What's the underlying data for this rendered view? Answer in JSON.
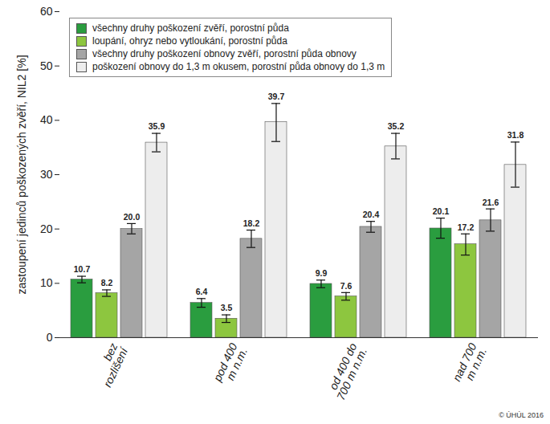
{
  "chart_data": {
    "type": "bar",
    "y_label": "zastoupení jedinců poškozených zvěří, NIL2 [%]",
    "categories": [
      "bez\nrozlišení",
      "pod 400\nm n.m.",
      "od 400 do\n700 m n.m.",
      "nad 700\nm n.m."
    ],
    "ylim": [
      0,
      60
    ],
    "yticks": [
      0,
      10,
      20,
      30,
      40,
      50,
      60
    ],
    "grid": false,
    "legend": "top-left",
    "data_labels": true,
    "copyright": "© ÚHÚL 2016",
    "series": [
      {
        "name": "všechny druhy poškození zvěří, porostní půda",
        "color": "#2a9d3f",
        "values": [
          10.7,
          6.4,
          9.9,
          20.1
        ],
        "value_labels": [
          "10.7",
          "6.4",
          "9.9",
          "20.1"
        ],
        "error_low": [
          10.1,
          5.6,
          9.2,
          18.3
        ],
        "error_high": [
          11.3,
          7.2,
          10.6,
          22.0
        ]
      },
      {
        "name": "loupání, ohryz nebo vytloukání, porostní půda",
        "color": "#8dc63f",
        "values": [
          8.2,
          3.5,
          7.6,
          17.2
        ],
        "value_labels": [
          "8.2",
          "3.5",
          "7.6",
          "17.2"
        ],
        "error_low": [
          7.6,
          2.8,
          6.9,
          15.2
        ],
        "error_high": [
          8.8,
          4.2,
          8.3,
          19.1
        ]
      },
      {
        "name": "všechny druhy poškození obnovy zvěří, porostní půda obnovy",
        "color": "#a5a5a5",
        "values": [
          20.0,
          18.2,
          20.4,
          21.6
        ],
        "value_labels": [
          "20.0",
          "18.2",
          "20.4",
          "21.6"
        ],
        "error_low": [
          19.1,
          16.6,
          19.4,
          19.6
        ],
        "error_high": [
          21.0,
          19.8,
          21.4,
          23.7
        ]
      },
      {
        "name": "poškození obnovy do 1,3 m okusem, porostní půda obnovy do 1,3 m",
        "color": "#ededed",
        "values": [
          35.9,
          39.7,
          35.2,
          31.8
        ],
        "value_labels": [
          "35.9",
          "39.7",
          "35.2",
          "31.8"
        ],
        "error_low": [
          34.2,
          36.1,
          32.9,
          27.7
        ],
        "error_high": [
          37.6,
          43.1,
          37.6,
          36.0
        ]
      }
    ]
  }
}
